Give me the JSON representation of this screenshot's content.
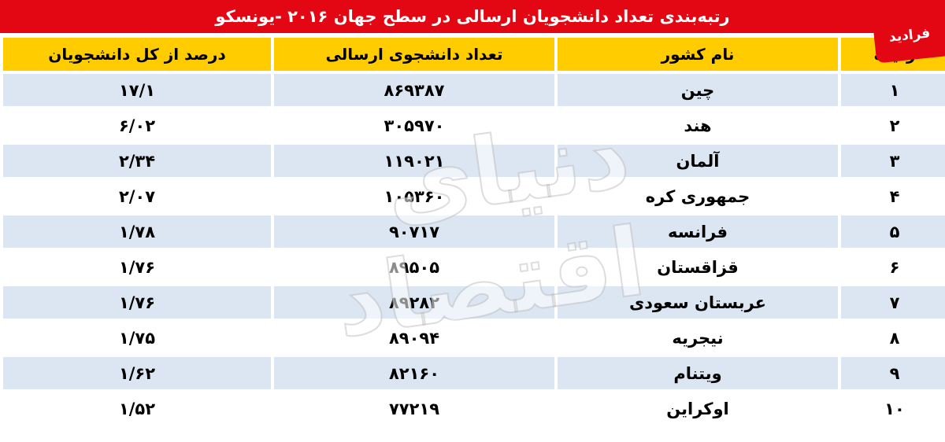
{
  "title": "رتبه‌بندی تعداد دانشجویان ارسالی در سطح جهان ۲۰۱۶ -یونسکو",
  "logo_text": "فرادید",
  "watermark_text": "دنیای اقتصاد",
  "headers": {
    "rank": "ردیف",
    "country": "نام کشور",
    "students": "تعداد دانشجوی ارسالی",
    "percent": "درصد از کل دانشجویان"
  },
  "rows": [
    {
      "rank": "۱",
      "country": "چین",
      "students": "۸۶۹۳۸۷",
      "percent": "۱۷/۱"
    },
    {
      "rank": "۲",
      "country": "هند",
      "students": "۳۰۵۹۷۰",
      "percent": "۶/۰۲"
    },
    {
      "rank": "۳",
      "country": "آلمان",
      "students": "۱۱۹۰۲۱",
      "percent": "۲/۳۴"
    },
    {
      "rank": "۴",
      "country": "جمهوری کره",
      "students": "۱۰۵۳۶۰",
      "percent": "۲/۰۷"
    },
    {
      "rank": "۵",
      "country": "فرانسه",
      "students": "۹۰۷۱۷",
      "percent": "۱/۷۸"
    },
    {
      "rank": "۶",
      "country": "قزاقستان",
      "students": "۸۹۵۰۵",
      "percent": "۱/۷۶"
    },
    {
      "rank": "۷",
      "country": "عربستان سعودی",
      "students": "۸۹۲۸۲",
      "percent": "۱/۷۶"
    },
    {
      "rank": "۸",
      "country": "نیجریه",
      "students": "۸۹۰۹۴",
      "percent": "۱/۷۵"
    },
    {
      "rank": "۹",
      "country": "ویتنام",
      "students": "۸۲۱۶۰",
      "percent": "۱/۶۲"
    },
    {
      "rank": "۱۰",
      "country": "اوکراین",
      "students": "۷۷۲۱۹",
      "percent": "۱/۵۲"
    }
  ],
  "colors": {
    "title_bg": "#e30613",
    "header_bg": "#ffcc00",
    "row_shaded": "#dce6f3",
    "row_plain": "#ffffff"
  }
}
